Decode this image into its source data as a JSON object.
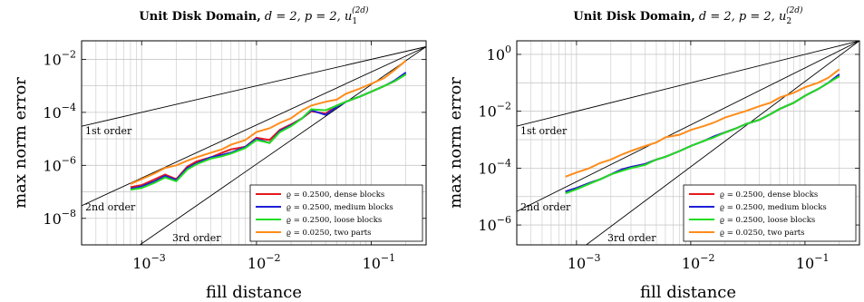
{
  "chart_data": [
    {
      "type": "line",
      "title_bold": "Unit Disk Domain,",
      "title_math": " d = 2, p = 2, u",
      "title_sub": "1",
      "title_sup": "(2d)",
      "xlabel": "fill distance",
      "ylabel": "max norm error",
      "x_scale": "log",
      "y_scale": "log",
      "xlim": [
        0.0003,
        0.3
      ],
      "ylim": [
        1e-09,
        0.05
      ],
      "x_ticks": [
        {
          "value": 0.001,
          "mant": "10",
          "exp": "−3"
        },
        {
          "value": 0.01,
          "mant": "10",
          "exp": "−2"
        },
        {
          "value": 0.1,
          "mant": "10",
          "exp": "−1"
        }
      ],
      "y_ticks": [
        {
          "value": 1e-08,
          "mant": "10",
          "exp": "−8"
        },
        {
          "value": 1e-06,
          "mant": "10",
          "exp": "−6"
        },
        {
          "value": 0.0001,
          "mant": "10",
          "exp": "−4"
        },
        {
          "value": 0.01,
          "mant": "10",
          "exp": "−2"
        }
      ],
      "grid": true,
      "legend_position": "bottom-right",
      "reference_lines": [
        {
          "label": "1st order",
          "points": [
            [
              0.0003,
              3e-05
            ],
            [
              0.3,
              0.03
            ]
          ]
        },
        {
          "label": "2nd order",
          "points": [
            [
              0.0003,
              3e-08
            ],
            [
              0.3,
              0.03
            ]
          ]
        },
        {
          "label": "3rd order",
          "points": [
            [
              0.0005,
              1.389e-10
            ],
            [
              0.3,
              0.03
            ]
          ]
        }
      ],
      "series": [
        {
          "name": "ϱ = 0.2500, dense blocks",
          "color": "#e41a1c",
          "x": [
            0.0008,
            0.001,
            0.0013,
            0.0016,
            0.002,
            0.0025,
            0.003,
            0.004,
            0.005,
            0.006,
            0.008,
            0.01,
            0.013,
            0.016,
            0.02,
            0.025,
            0.03,
            0.04,
            0.05,
            0.06,
            0.08,
            0.1,
            0.13,
            0.16,
            0.2
          ],
          "y": [
            1.5e-07,
            1.8e-07,
            3e-07,
            4.5e-07,
            3e-07,
            9e-07,
            1.4e-06,
            2e-06,
            3e-06,
            4e-06,
            5e-06,
            1.1e-05,
            9e-06,
            2.2e-05,
            3.5e-05,
            6e-05,
            0.00011,
            9e-05,
            0.00018,
            0.00025,
            0.0004,
            0.0006,
            0.001,
            0.0015,
            0.0028
          ]
        },
        {
          "name": "ϱ = 0.2500, medium blocks",
          "color": "#1f1fd6",
          "x": [
            0.0008,
            0.001,
            0.0013,
            0.0016,
            0.002,
            0.0025,
            0.003,
            0.004,
            0.005,
            0.006,
            0.008,
            0.01,
            0.013,
            0.016,
            0.02,
            0.025,
            0.03,
            0.04,
            0.05,
            0.06,
            0.08,
            0.1,
            0.13,
            0.16,
            0.2
          ],
          "y": [
            1.3e-07,
            1.6e-07,
            2.5e-07,
            4e-07,
            2.8e-07,
            8e-07,
            1.2e-06,
            2e-06,
            2.5e-06,
            3e-06,
            5e-06,
            1e-05,
            7e-06,
            2e-05,
            3.2e-05,
            6e-05,
            0.00012,
            8e-05,
            0.00016,
            0.00025,
            0.0004,
            0.0006,
            0.001,
            0.0016,
            0.0032
          ]
        },
        {
          "name": "ϱ = 0.2500, loose blocks",
          "color": "#22dd22",
          "x": [
            0.0008,
            0.001,
            0.0013,
            0.0016,
            0.002,
            0.0025,
            0.003,
            0.004,
            0.005,
            0.006,
            0.008,
            0.01,
            0.013,
            0.016,
            0.02,
            0.025,
            0.03,
            0.04,
            0.05,
            0.06,
            0.08,
            0.1,
            0.13,
            0.16,
            0.2
          ],
          "y": [
            1.2e-07,
            1.4e-07,
            2.2e-07,
            3.5e-07,
            2.5e-07,
            7e-07,
            1.1e-06,
            1.8e-06,
            2.2e-06,
            2.8e-06,
            4.5e-06,
            9e-06,
            7e-06,
            1.8e-05,
            3e-05,
            6e-05,
            0.00013,
            0.00012,
            0.00018,
            0.00025,
            0.0004,
            0.0006,
            0.001,
            0.0015,
            0.0027
          ]
        },
        {
          "name": "ϱ = 0.0250, two parts",
          "color": "#ff8c1a",
          "x": [
            0.0008,
            0.001,
            0.0013,
            0.0016,
            0.002,
            0.0025,
            0.003,
            0.004,
            0.005,
            0.006,
            0.008,
            0.01,
            0.013,
            0.016,
            0.02,
            0.025,
            0.03,
            0.04,
            0.05,
            0.06,
            0.08,
            0.1,
            0.13,
            0.16,
            0.2
          ],
          "y": [
            2e-07,
            3e-07,
            5e-07,
            8e-07,
            1e-06,
            1.5e-06,
            2e-06,
            3e-06,
            4e-06,
            6e-06,
            9e-06,
            1.8e-05,
            2.5e-05,
            4e-05,
            6e-05,
            0.00012,
            0.00018,
            0.00025,
            0.0003,
            0.0005,
            0.0008,
            0.0012,
            0.002,
            0.004,
            0.009
          ]
        }
      ]
    },
    {
      "type": "line",
      "title_bold": "Unit Disk Domain,",
      "title_math": " d = 2, p = 2, u",
      "title_sub": "2",
      "title_sup": "(2d)",
      "xlabel": "fill distance",
      "ylabel": "max norm error",
      "x_scale": "log",
      "y_scale": "log",
      "xlim": [
        0.0003,
        0.3
      ],
      "ylim": [
        2e-07,
        3
      ],
      "x_ticks": [
        {
          "value": 0.001,
          "mant": "10",
          "exp": "−3"
        },
        {
          "value": 0.01,
          "mant": "10",
          "exp": "−2"
        },
        {
          "value": 0.1,
          "mant": "10",
          "exp": "−1"
        }
      ],
      "y_ticks": [
        {
          "value": 1e-06,
          "mant": "10",
          "exp": "−6"
        },
        {
          "value": 0.0001,
          "mant": "10",
          "exp": "−4"
        },
        {
          "value": 0.01,
          "mant": "10",
          "exp": "−2"
        },
        {
          "value": 1,
          "mant": "10",
          "exp": "0"
        }
      ],
      "grid": true,
      "legend_position": "bottom-right",
      "reference_lines": [
        {
          "label": "1st order",
          "points": [
            [
              0.0003,
              0.003
            ],
            [
              0.3,
              3
            ]
          ]
        },
        {
          "label": "2nd order",
          "points": [
            [
              0.0003,
              3e-06
            ],
            [
              0.3,
              3
            ]
          ]
        },
        {
          "label": "3rd order",
          "points": [
            [
              0.0006,
              2.4e-08
            ],
            [
              0.3,
              3
            ]
          ]
        }
      ],
      "series": [
        {
          "name": "ϱ = 0.2500, dense blocks",
          "color": "#e41a1c",
          "x": [
            0.0008,
            0.001,
            0.0013,
            0.0016,
            0.002,
            0.0025,
            0.003,
            0.004,
            0.005,
            0.006,
            0.008,
            0.01,
            0.013,
            0.016,
            0.02,
            0.025,
            0.03,
            0.04,
            0.05,
            0.06,
            0.08,
            0.1,
            0.13,
            0.16,
            0.2
          ],
          "y": [
            1.5e-05,
            2e-05,
            3e-05,
            4e-05,
            6e-05,
            9e-05,
            0.00011,
            0.00014,
            0.0002,
            0.00025,
            0.0004,
            0.0006,
            0.0009,
            0.0013,
            0.0018,
            0.0025,
            0.0035,
            0.005,
            0.008,
            0.012,
            0.02,
            0.035,
            0.06,
            0.1,
            0.18
          ]
        },
        {
          "name": "ϱ = 0.2500, medium blocks",
          "color": "#1f1fd6",
          "x": [
            0.0008,
            0.001,
            0.0013,
            0.0016,
            0.002,
            0.0025,
            0.003,
            0.004,
            0.005,
            0.006,
            0.008,
            0.01,
            0.013,
            0.016,
            0.02,
            0.025,
            0.03,
            0.04,
            0.05,
            0.06,
            0.08,
            0.1,
            0.13,
            0.16,
            0.2
          ],
          "y": [
            1.5e-05,
            2e-05,
            3e-05,
            4e-05,
            6e-05,
            9e-05,
            0.00011,
            0.00014,
            0.0002,
            0.00025,
            0.0004,
            0.0006,
            0.0009,
            0.0013,
            0.0018,
            0.0025,
            0.0035,
            0.005,
            0.008,
            0.012,
            0.02,
            0.035,
            0.06,
            0.1,
            0.2
          ]
        },
        {
          "name": "ϱ = 0.2500, loose blocks",
          "color": "#22dd22",
          "x": [
            0.0008,
            0.001,
            0.0013,
            0.0016,
            0.002,
            0.0025,
            0.003,
            0.004,
            0.005,
            0.006,
            0.008,
            0.01,
            0.013,
            0.016,
            0.02,
            0.025,
            0.03,
            0.04,
            0.05,
            0.06,
            0.08,
            0.1,
            0.13,
            0.16,
            0.2
          ],
          "y": [
            1.3e-05,
            1.8e-05,
            2.8e-05,
            4e-05,
            6e-05,
            8e-05,
            0.0001,
            0.00013,
            0.0002,
            0.00025,
            0.0004,
            0.0006,
            0.0009,
            0.0012,
            0.0018,
            0.0025,
            0.0035,
            0.005,
            0.008,
            0.012,
            0.02,
            0.035,
            0.06,
            0.1,
            0.17
          ]
        },
        {
          "name": "ϱ = 0.0250, two parts",
          "color": "#ff8c1a",
          "x": [
            0.0008,
            0.001,
            0.0013,
            0.0016,
            0.002,
            0.0025,
            0.003,
            0.004,
            0.005,
            0.006,
            0.008,
            0.01,
            0.013,
            0.016,
            0.02,
            0.025,
            0.03,
            0.04,
            0.05,
            0.06,
            0.08,
            0.1,
            0.13,
            0.16,
            0.2
          ],
          "y": [
            5e-05,
            7e-05,
            0.0001,
            0.00015,
            0.0002,
            0.0003,
            0.0004,
            0.0006,
            0.0008,
            0.0012,
            0.0015,
            0.0022,
            0.003,
            0.004,
            0.006,
            0.008,
            0.01,
            0.015,
            0.02,
            0.03,
            0.045,
            0.07,
            0.1,
            0.15,
            0.3
          ]
        }
      ]
    }
  ]
}
